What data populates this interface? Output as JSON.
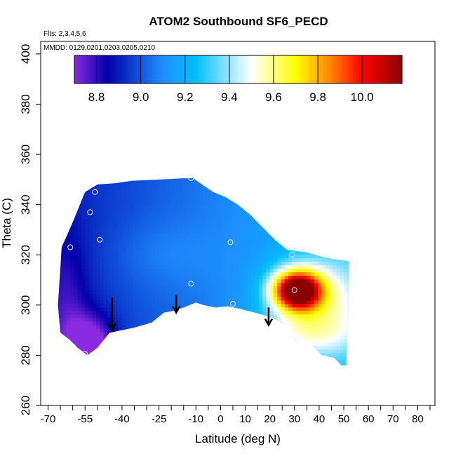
{
  "chart_data": {
    "type": "heatmap",
    "title": "ATOM2 Southbound SF6_PECD",
    "annotations": {
      "flights": "Flts: 2,3,4,5,6",
      "dates": "MMDD: 0129,0201,0203,0205,0210"
    },
    "xlabel": "Latitude (deg N)",
    "ylabel": "Theta (C)",
    "xlim": [
      -73,
      87
    ],
    "ylim": [
      260,
      405
    ],
    "x_ticks": [
      -70,
      -55,
      -40,
      -25,
      -10,
      0,
      10,
      20,
      30,
      40,
      50,
      60,
      70,
      80
    ],
    "x_tick_labels": [
      "-70",
      "-55",
      "-40",
      "-25",
      "-10",
      "0",
      "10",
      "20",
      "30",
      "40",
      "50",
      "60",
      "70",
      "80"
    ],
    "x_minor_ticks": [
      -65,
      -60,
      -50,
      -45,
      -35,
      -30,
      -20,
      -15,
      -5,
      5,
      15,
      25,
      35,
      45,
      55,
      65,
      75,
      85
    ],
    "y_ticks": [
      260,
      280,
      300,
      320,
      340,
      360,
      380,
      400
    ],
    "y_tick_labels": [
      "260",
      "280",
      "300",
      "320",
      "340",
      "360",
      "380",
      "400"
    ],
    "colorbar": {
      "min": 8.7,
      "max": 10.18,
      "ticks": [
        8.8,
        9.0,
        9.2,
        9.4,
        9.6,
        9.8,
        10.0
      ],
      "tick_labels": [
        "8.8",
        "9.0",
        "9.2",
        "9.4",
        "9.6",
        "9.8",
        "10.0"
      ],
      "colors": [
        "#8a2be2",
        "#0000aa",
        "#1e90ff",
        "#00bfff",
        "#ffffff",
        "#ffff00",
        "#ff8c00",
        "#ff0000",
        "#8b0000"
      ],
      "color_stops": [
        8.7,
        8.85,
        9.1,
        9.25,
        9.5,
        9.7,
        9.85,
        10.0,
        10.18
      ]
    },
    "field": {
      "background": 9.08,
      "gradient_latitude": 0.0028,
      "gradient_theta": 0.0,
      "features": [
        {
          "lat": -53,
          "theta": 283,
          "amp": -0.34,
          "sx": 7,
          "sy": 9
        },
        {
          "lat": -62,
          "theta": 300,
          "amp": -0.12,
          "sx": 6,
          "sy": 20
        },
        {
          "lat": 31,
          "theta": 306,
          "amp": 1.05,
          "sx": 7,
          "sy": 5.5
        },
        {
          "lat": 40,
          "theta": 300,
          "amp": 0.34,
          "sx": 14,
          "sy": 14
        },
        {
          "lat": 30,
          "theta": 288,
          "amp": 0.16,
          "sx": 16,
          "sy": 6
        },
        {
          "lat": -25,
          "theta": 320,
          "amp": 0.06,
          "sx": 14,
          "sy": 10
        }
      ],
      "domain_outline": [
        [
          -64.5,
          323
        ],
        [
          -60,
          333
        ],
        [
          -55,
          345
        ],
        [
          -50,
          348
        ],
        [
          -43,
          348.5
        ],
        [
          -36,
          349.5
        ],
        [
          -25,
          350
        ],
        [
          -15,
          350.5
        ],
        [
          -11,
          350.5
        ],
        [
          -9,
          349
        ],
        [
          -3,
          345
        ],
        [
          2,
          343
        ],
        [
          7,
          340
        ],
        [
          12,
          336
        ],
        [
          17,
          331
        ],
        [
          22,
          326
        ],
        [
          27,
          322
        ],
        [
          35,
          321
        ],
        [
          42,
          319
        ],
        [
          48,
          318
        ],
        [
          52,
          317.5
        ],
        [
          52,
          297
        ],
        [
          51,
          276
        ],
        [
          49,
          276
        ],
        [
          46,
          279
        ],
        [
          41,
          280
        ],
        [
          36,
          285
        ],
        [
          32,
          287
        ],
        [
          26,
          292
        ],
        [
          21,
          295
        ],
        [
          14,
          297
        ],
        [
          8,
          298.5
        ],
        [
          3,
          299.5
        ],
        [
          -2,
          299
        ],
        [
          -7,
          300
        ],
        [
          -10,
          301
        ],
        [
          -15,
          299
        ],
        [
          -20,
          297.5
        ],
        [
          -23,
          297
        ],
        [
          -28,
          293
        ],
        [
          -35,
          291
        ],
        [
          -40,
          290
        ],
        [
          -45,
          289
        ],
        [
          -50,
          283
        ],
        [
          -54,
          280
        ],
        [
          -58,
          283
        ],
        [
          -61,
          286
        ],
        [
          -65,
          289
        ],
        [
          -66,
          300
        ],
        [
          -65,
          315
        ]
      ]
    },
    "sample_points": [
      {
        "lat": -55,
        "theta": 280.5
      },
      {
        "lat": -67,
        "theta": 289
      },
      {
        "lat": -61,
        "theta": 323
      },
      {
        "lat": -53,
        "theta": 337
      },
      {
        "lat": -51,
        "theta": 345
      },
      {
        "lat": -49,
        "theta": 326
      },
      {
        "lat": -12,
        "theta": 350.5
      },
      {
        "lat": -12,
        "theta": 308.5
      },
      {
        "lat": 4,
        "theta": 325
      },
      {
        "lat": 5,
        "theta": 300.5
      },
      {
        "lat": 29,
        "theta": 320
      },
      {
        "lat": 30,
        "theta": 306
      },
      {
        "lat": 31,
        "theta": 286.5
      }
    ],
    "arrows": [
      {
        "lat": -44,
        "theta_top": 303,
        "theta_bottom": 290
      },
      {
        "lat": -18,
        "theta_top": 304,
        "theta_bottom": 297
      },
      {
        "lat": 19.5,
        "theta_top": 299,
        "theta_bottom": 292
      }
    ]
  }
}
